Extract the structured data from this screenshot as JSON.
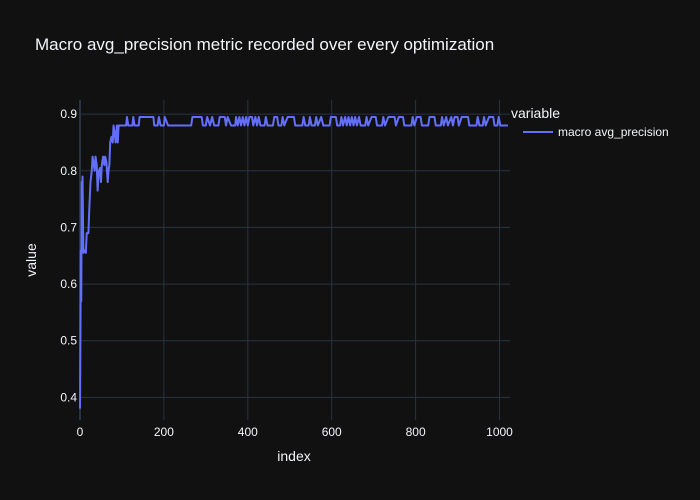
{
  "chart_data": {
    "type": "line",
    "title": "Macro avg_precision metric recorded over every optimization",
    "xlabel": "index",
    "ylabel": "value",
    "xlim": [
      0,
      1025
    ],
    "ylim": [
      0.36,
      0.925
    ],
    "x_ticks": [
      0,
      200,
      400,
      600,
      800,
      1000
    ],
    "y_ticks": [
      0.4,
      0.5,
      0.6,
      0.7,
      0.8,
      0.9
    ],
    "x_tick_labels": [
      "0",
      "200",
      "400",
      "600",
      "800",
      "1000"
    ],
    "y_tick_labels": [
      "0.4",
      "0.5",
      "0.6",
      "0.7",
      "0.8",
      "0.9"
    ],
    "grid": true,
    "legend": {
      "title": "variable",
      "placement": "top-right"
    },
    "series": [
      {
        "name": "macro avg_precision",
        "color": "#636efa",
        "points": [
          [
            0,
            0.38
          ],
          [
            1,
            0.5
          ],
          [
            2,
            0.66
          ],
          [
            3,
            0.57
          ],
          [
            4,
            0.78
          ],
          [
            5,
            0.66
          ],
          [
            6,
            0.79
          ],
          [
            8,
            0.655
          ],
          [
            10,
            0.66
          ],
          [
            14,
            0.655
          ],
          [
            16,
            0.69
          ],
          [
            20,
            0.69
          ],
          [
            22,
            0.73
          ],
          [
            25,
            0.78
          ],
          [
            28,
            0.8
          ],
          [
            30,
            0.825
          ],
          [
            33,
            0.81
          ],
          [
            35,
            0.8
          ],
          [
            37,
            0.825
          ],
          [
            40,
            0.81
          ],
          [
            42,
            0.765
          ],
          [
            45,
            0.8
          ],
          [
            48,
            0.805
          ],
          [
            50,
            0.78
          ],
          [
            52,
            0.81
          ],
          [
            55,
            0.825
          ],
          [
            58,
            0.81
          ],
          [
            60,
            0.825
          ],
          [
            63,
            0.815
          ],
          [
            66,
            0.78
          ],
          [
            68,
            0.8
          ],
          [
            70,
            0.81
          ],
          [
            72,
            0.85
          ],
          [
            75,
            0.86
          ],
          [
            78,
            0.85
          ],
          [
            80,
            0.88
          ],
          [
            82,
            0.87
          ],
          [
            85,
            0.85
          ],
          [
            88,
            0.88
          ],
          [
            90,
            0.85
          ],
          [
            92,
            0.88
          ],
          [
            95,
            0.88
          ],
          [
            110,
            0.88
          ],
          [
            112,
            0.895
          ],
          [
            115,
            0.88
          ],
          [
            125,
            0.88
          ],
          [
            127,
            0.895
          ],
          [
            130,
            0.88
          ],
          [
            140,
            0.88
          ],
          [
            142,
            0.895
          ],
          [
            175,
            0.895
          ],
          [
            177,
            0.88
          ],
          [
            185,
            0.88
          ],
          [
            188,
            0.895
          ],
          [
            192,
            0.88
          ],
          [
            200,
            0.88
          ],
          [
            202,
            0.895
          ],
          [
            210,
            0.88
          ],
          [
            265,
            0.88
          ],
          [
            268,
            0.895
          ],
          [
            290,
            0.895
          ],
          [
            293,
            0.88
          ],
          [
            300,
            0.88
          ],
          [
            303,
            0.895
          ],
          [
            310,
            0.88
          ],
          [
            315,
            0.895
          ],
          [
            320,
            0.88
          ],
          [
            330,
            0.88
          ],
          [
            333,
            0.895
          ],
          [
            345,
            0.895
          ],
          [
            348,
            0.88
          ],
          [
            352,
            0.895
          ],
          [
            360,
            0.88
          ],
          [
            370,
            0.88
          ],
          [
            372,
            0.895
          ],
          [
            376,
            0.88
          ],
          [
            380,
            0.895
          ],
          [
            384,
            0.88
          ],
          [
            388,
            0.895
          ],
          [
            392,
            0.88
          ],
          [
            396,
            0.895
          ],
          [
            400,
            0.88
          ],
          [
            404,
            0.895
          ],
          [
            410,
            0.895
          ],
          [
            413,
            0.88
          ],
          [
            418,
            0.895
          ],
          [
            422,
            0.88
          ],
          [
            426,
            0.895
          ],
          [
            430,
            0.88
          ],
          [
            440,
            0.88
          ],
          [
            443,
            0.895
          ],
          [
            447,
            0.88
          ],
          [
            460,
            0.88
          ],
          [
            463,
            0.895
          ],
          [
            470,
            0.895
          ],
          [
            473,
            0.88
          ],
          [
            480,
            0.88
          ],
          [
            483,
            0.895
          ],
          [
            487,
            0.88
          ],
          [
            495,
            0.895
          ],
          [
            510,
            0.895
          ],
          [
            513,
            0.88
          ],
          [
            530,
            0.88
          ],
          [
            533,
            0.895
          ],
          [
            537,
            0.88
          ],
          [
            545,
            0.88
          ],
          [
            548,
            0.895
          ],
          [
            552,
            0.88
          ],
          [
            560,
            0.88
          ],
          [
            563,
            0.895
          ],
          [
            567,
            0.88
          ],
          [
            575,
            0.895
          ],
          [
            580,
            0.88
          ],
          [
            595,
            0.88
          ],
          [
            598,
            0.895
          ],
          [
            610,
            0.895
          ],
          [
            613,
            0.88
          ],
          [
            620,
            0.88
          ],
          [
            623,
            0.895
          ],
          [
            627,
            0.88
          ],
          [
            632,
            0.895
          ],
          [
            636,
            0.88
          ],
          [
            640,
            0.895
          ],
          [
            644,
            0.88
          ],
          [
            648,
            0.895
          ],
          [
            652,
            0.88
          ],
          [
            656,
            0.895
          ],
          [
            660,
            0.88
          ],
          [
            665,
            0.895
          ],
          [
            669,
            0.88
          ],
          [
            680,
            0.88
          ],
          [
            683,
            0.895
          ],
          [
            687,
            0.88
          ],
          [
            695,
            0.895
          ],
          [
            705,
            0.895
          ],
          [
            708,
            0.88
          ],
          [
            720,
            0.88
          ],
          [
            723,
            0.895
          ],
          [
            727,
            0.88
          ],
          [
            735,
            0.895
          ],
          [
            750,
            0.895
          ],
          [
            753,
            0.88
          ],
          [
            760,
            0.895
          ],
          [
            770,
            0.895
          ],
          [
            773,
            0.88
          ],
          [
            790,
            0.88
          ],
          [
            793,
            0.895
          ],
          [
            797,
            0.88
          ],
          [
            803,
            0.895
          ],
          [
            812,
            0.895
          ],
          [
            815,
            0.88
          ],
          [
            830,
            0.88
          ],
          [
            833,
            0.895
          ],
          [
            845,
            0.895
          ],
          [
            848,
            0.88
          ],
          [
            860,
            0.88
          ],
          [
            863,
            0.895
          ],
          [
            867,
            0.88
          ],
          [
            873,
            0.895
          ],
          [
            877,
            0.88
          ],
          [
            885,
            0.895
          ],
          [
            889,
            0.88
          ],
          [
            893,
            0.895
          ],
          [
            900,
            0.895
          ],
          [
            903,
            0.88
          ],
          [
            910,
            0.895
          ],
          [
            925,
            0.895
          ],
          [
            928,
            0.88
          ],
          [
            945,
            0.88
          ],
          [
            948,
            0.895
          ],
          [
            952,
            0.88
          ],
          [
            960,
            0.88
          ],
          [
            963,
            0.895
          ],
          [
            967,
            0.88
          ],
          [
            975,
            0.895
          ],
          [
            985,
            0.895
          ],
          [
            988,
            0.88
          ],
          [
            995,
            0.88
          ],
          [
            998,
            0.895
          ],
          [
            1002,
            0.88
          ],
          [
            1020,
            0.88
          ]
        ]
      }
    ]
  }
}
